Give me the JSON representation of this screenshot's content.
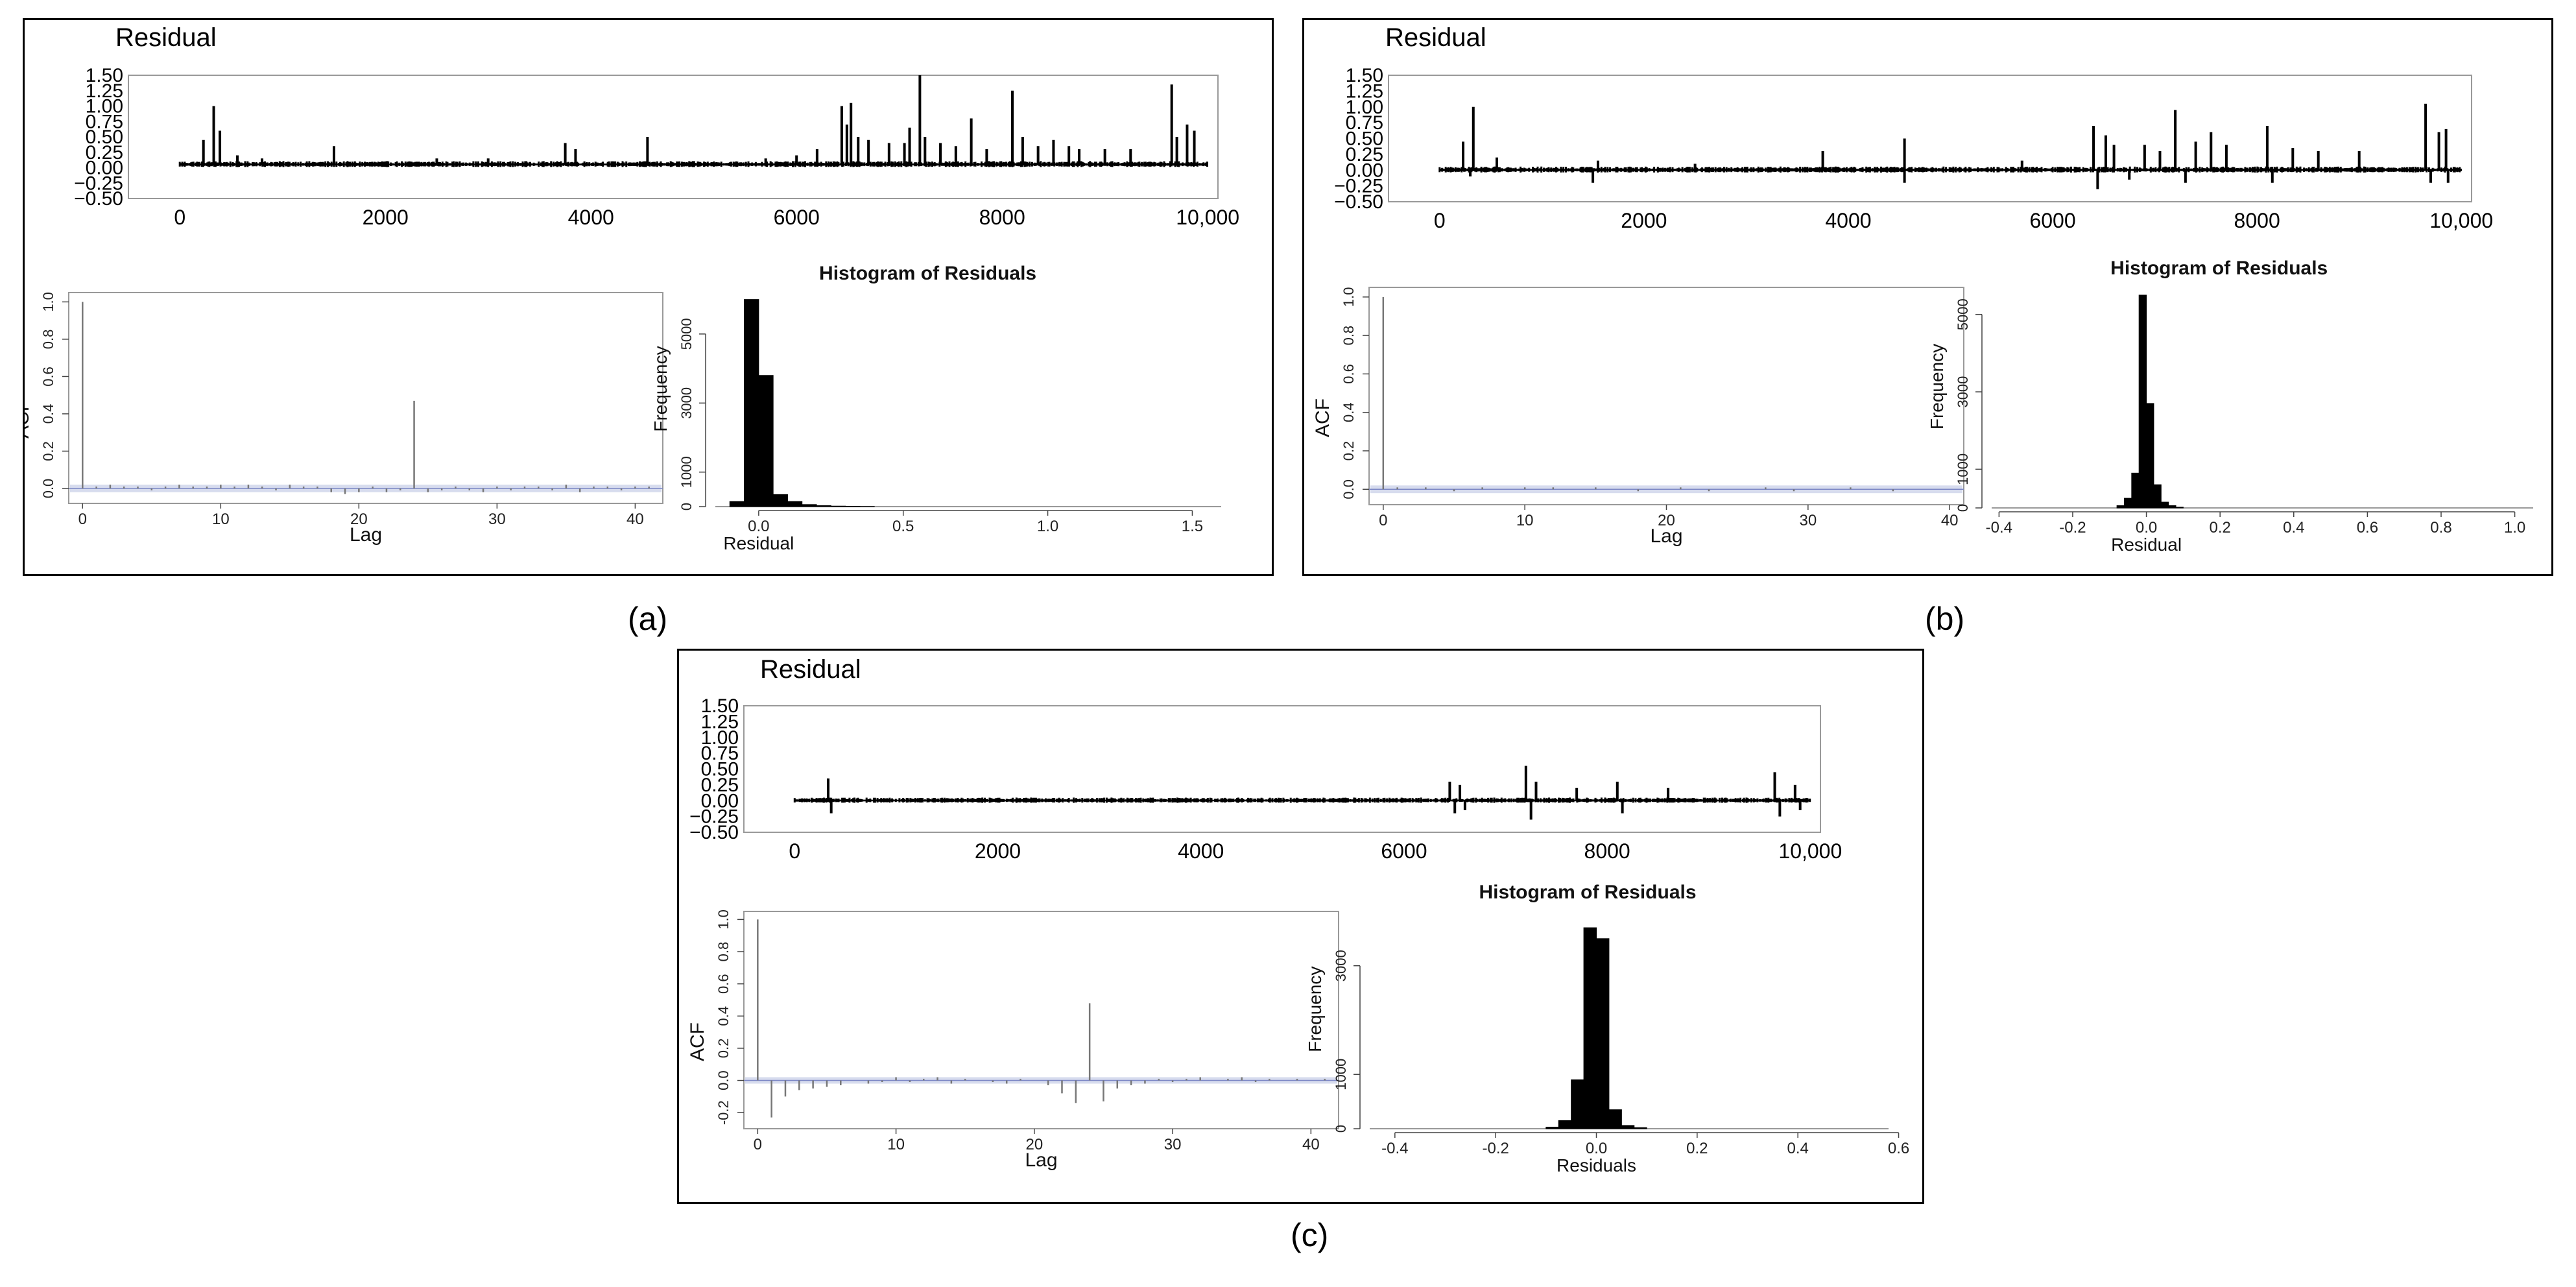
{
  "chart_data": [
    {
      "caption": "(a)",
      "residual": {
        "type": "line",
        "title": "Residual",
        "xlim": [
          -500,
          10100
        ],
        "ylim": [
          -0.5,
          1.5
        ],
        "xticks": [
          0,
          2000,
          4000,
          6000,
          8000,
          10000
        ],
        "xtick_labels": [
          "0",
          "2000",
          "4000",
          "6000",
          "8000",
          "10,000"
        ],
        "yticks": [
          -0.5,
          -0.25,
          0.0,
          0.25,
          0.5,
          0.75,
          1.0,
          1.25,
          1.5
        ],
        "ytick_labels": [
          "−0.50",
          "−0.25",
          "0.00",
          "0.25",
          "0.50",
          "0.75",
          "1.00",
          "1.25",
          "1.50"
        ],
        "series_length": 10000,
        "baseline": 0.05,
        "noise": 0.04,
        "spikes": [
          [
            230,
            0.45
          ],
          [
            330,
            1.0
          ],
          [
            390,
            0.6
          ],
          [
            560,
            0.2
          ],
          [
            800,
            0.15
          ],
          [
            1500,
            0.35
          ],
          [
            2500,
            0.15
          ],
          [
            3000,
            0.15
          ],
          [
            3750,
            0.4
          ],
          [
            3850,
            0.3
          ],
          [
            4550,
            0.5
          ],
          [
            5700,
            0.15
          ],
          [
            6000,
            0.2
          ],
          [
            6200,
            0.3
          ],
          [
            6440,
            1.0
          ],
          [
            6490,
            0.7
          ],
          [
            6530,
            1.05
          ],
          [
            6600,
            0.5
          ],
          [
            6700,
            0.45
          ],
          [
            6900,
            0.4
          ],
          [
            7050,
            0.4
          ],
          [
            7100,
            0.65
          ],
          [
            7200,
            1.5
          ],
          [
            7250,
            0.5
          ],
          [
            7400,
            0.4
          ],
          [
            7550,
            0.35
          ],
          [
            7700,
            0.8
          ],
          [
            7850,
            0.3
          ],
          [
            8100,
            1.25
          ],
          [
            8200,
            0.5
          ],
          [
            8350,
            0.35
          ],
          [
            8500,
            0.45
          ],
          [
            8650,
            0.35
          ],
          [
            8750,
            0.3
          ],
          [
            9000,
            0.3
          ],
          [
            9250,
            0.3
          ],
          [
            9650,
            1.35
          ],
          [
            9700,
            0.5
          ],
          [
            9800,
            0.7
          ],
          [
            9870,
            0.6
          ]
        ]
      },
      "acf": {
        "type": "bar",
        "xlabel": "Lag",
        "ylabel": "ACF",
        "xlim": [
          -1,
          42
        ],
        "ylim": [
          -0.08,
          1.05
        ],
        "xticks": [
          0,
          10,
          20,
          30,
          40
        ],
        "yticks": [
          0.0,
          0.2,
          0.4,
          0.6,
          0.8,
          1.0
        ],
        "ytick_labels": [
          "0.0",
          "0.2",
          "0.4",
          "0.6",
          "0.8",
          "1.0"
        ],
        "conf_band": 0.02,
        "values": [
          1.0,
          0.01,
          0.02,
          0.01,
          0.01,
          -0.01,
          0.01,
          0.02,
          0.01,
          0.01,
          0.02,
          0.01,
          0.02,
          0.01,
          -0.01,
          0.02,
          0.01,
          0.01,
          -0.02,
          -0.03,
          -0.02,
          0.01,
          -0.02,
          -0.01,
          0.47,
          -0.02,
          -0.01,
          0.01,
          -0.01,
          -0.02,
          0.01,
          -0.01,
          0.01,
          0.01,
          -0.01,
          0.02,
          -0.02,
          0.01,
          0.01,
          -0.01,
          0.01,
          0.01
        ]
      },
      "histogram": {
        "type": "bar",
        "title": "Histogram of Residuals",
        "xlabel": "Residual",
        "ylabel": "Frequency",
        "xlim": [
          -0.15,
          1.6
        ],
        "ylim": [
          0,
          6200
        ],
        "xticks": [
          0.0,
          0.5,
          1.0,
          1.5
        ],
        "xtick_labels": [
          "0.0",
          "0.5",
          "1.0",
          "1.5"
        ],
        "yticks": [
          0,
          1000,
          3000,
          5000
        ],
        "ytick_labels": [
          "0",
          "1000",
          "3000",
          "5000"
        ],
        "bins": [
          -0.1,
          -0.05,
          0.0,
          0.05,
          0.1,
          0.15,
          0.2,
          0.25,
          0.3,
          0.35,
          0.4
        ],
        "counts": [
          150,
          6000,
          3800,
          350,
          150,
          60,
          30,
          15,
          10,
          5
        ]
      }
    },
    {
      "caption": "(b)",
      "residual": {
        "type": "line",
        "title": "Residual",
        "xlim": [
          -500,
          10100
        ],
        "ylim": [
          -0.5,
          1.5
        ],
        "xticks": [
          0,
          2000,
          4000,
          6000,
          8000,
          10000
        ],
        "xtick_labels": [
          "0",
          "2000",
          "4000",
          "6000",
          "8000",
          "10,000"
        ],
        "yticks": [
          -0.5,
          -0.25,
          0.0,
          0.25,
          0.5,
          0.75,
          1.0,
          1.25,
          1.5
        ],
        "ytick_labels": [
          "−0.50",
          "−0.25",
          "0.00",
          "0.25",
          "0.50",
          "0.75",
          "1.00",
          "1.25",
          "1.50"
        ],
        "series_length": 10000,
        "baseline": 0.0,
        "noise": 0.04,
        "spikes": [
          [
            230,
            0.45
          ],
          [
            330,
            1.0
          ],
          [
            300,
            -0.1
          ],
          [
            560,
            0.2
          ],
          [
            1500,
            -0.2
          ],
          [
            1550,
            0.15
          ],
          [
            2500,
            0.1
          ],
          [
            3750,
            0.3
          ],
          [
            4550,
            0.5
          ],
          [
            4550,
            -0.2
          ],
          [
            5700,
            0.15
          ],
          [
            6400,
            0.7
          ],
          [
            6440,
            -0.3
          ],
          [
            6520,
            0.55
          ],
          [
            6600,
            0.4
          ],
          [
            6750,
            -0.15
          ],
          [
            6900,
            0.4
          ],
          [
            7050,
            0.3
          ],
          [
            7200,
            0.95
          ],
          [
            7300,
            -0.2
          ],
          [
            7400,
            0.45
          ],
          [
            7550,
            0.6
          ],
          [
            7700,
            0.4
          ],
          [
            8100,
            0.7
          ],
          [
            8150,
            -0.2
          ],
          [
            8350,
            0.35
          ],
          [
            8600,
            0.3
          ],
          [
            9000,
            0.3
          ],
          [
            9650,
            1.05
          ],
          [
            9700,
            -0.2
          ],
          [
            9780,
            0.6
          ],
          [
            9850,
            0.65
          ],
          [
            9870,
            -0.2
          ]
        ]
      },
      "acf": {
        "type": "bar",
        "xlabel": "Lag",
        "ylabel": "ACF",
        "xlim": [
          -1,
          41
        ],
        "ylim": [
          -0.08,
          1.05
        ],
        "xticks": [
          0,
          10,
          20,
          30,
          40
        ],
        "yticks": [
          0.0,
          0.2,
          0.4,
          0.6,
          0.8,
          1.0
        ],
        "ytick_labels": [
          "0.0",
          "0.2",
          "0.4",
          "0.6",
          "0.8",
          "1.0"
        ],
        "conf_band": 0.02,
        "values": [
          1.0,
          0.01,
          0.0,
          0.01,
          0.0,
          -0.01,
          0.0,
          0.01,
          0.0,
          0.0,
          0.01,
          0.0,
          0.01,
          0.0,
          0.0,
          0.01,
          0.0,
          0.0,
          -0.01,
          0.0,
          0.0,
          0.01,
          0.0,
          -0.01,
          0.0,
          0.0,
          0.0,
          0.01,
          0.0,
          -0.01,
          0.0,
          0.0,
          0.0,
          0.01,
          0.0,
          0.0,
          -0.01,
          0.0,
          0.0,
          0.0,
          0.0
        ]
      },
      "histogram": {
        "type": "bar",
        "title": "Histogram of Residuals",
        "xlabel": "Residual",
        "ylabel": "Frequency",
        "xlim": [
          -0.42,
          1.05
        ],
        "ylim": [
          0,
          5700
        ],
        "xticks": [
          -0.4,
          -0.2,
          0.0,
          0.2,
          0.4,
          0.6,
          0.8,
          1.0
        ],
        "xtick_labels": [
          "-0.4",
          "-0.2",
          "0.0",
          "0.2",
          "0.4",
          "0.6",
          "0.8",
          "1.0"
        ],
        "yticks": [
          0,
          1000,
          3000,
          5000
        ],
        "ytick_labels": [
          "0",
          "1000",
          "3000",
          "5000"
        ],
        "bins": [
          -0.08,
          -0.06,
          -0.04,
          -0.02,
          0.0,
          0.02,
          0.04,
          0.06,
          0.08,
          0.1
        ],
        "counts": [
          60,
          250,
          900,
          5500,
          2700,
          600,
          150,
          60,
          20
        ]
      }
    },
    {
      "caption": "(c)",
      "residual": {
        "type": "line",
        "title": "Residual",
        "xlim": [
          -500,
          10100
        ],
        "ylim": [
          -0.5,
          1.5
        ],
        "xticks": [
          0,
          2000,
          4000,
          6000,
          8000,
          10000
        ],
        "xtick_labels": [
          "0",
          "2000",
          "4000",
          "6000",
          "8000",
          "10,000"
        ],
        "yticks": [
          -0.5,
          -0.25,
          0.0,
          0.25,
          0.5,
          0.75,
          1.0,
          1.25,
          1.5
        ],
        "ytick_labels": [
          "−0.50",
          "−0.25",
          "0.00",
          "0.25",
          "0.50",
          "0.75",
          "1.00",
          "1.25",
          "1.50"
        ],
        "series_length": 10000,
        "baseline": 0.0,
        "noise": 0.035,
        "spikes": [
          [
            330,
            0.35
          ],
          [
            360,
            -0.2
          ],
          [
            6450,
            0.3
          ],
          [
            6500,
            -0.2
          ],
          [
            6550,
            0.25
          ],
          [
            6600,
            -0.15
          ],
          [
            7200,
            0.55
          ],
          [
            7250,
            -0.3
          ],
          [
            7300,
            0.3
          ],
          [
            7700,
            0.2
          ],
          [
            8100,
            0.3
          ],
          [
            8150,
            -0.2
          ],
          [
            8600,
            0.2
          ],
          [
            9650,
            0.45
          ],
          [
            9700,
            -0.25
          ],
          [
            9850,
            0.25
          ],
          [
            9900,
            -0.15
          ]
        ]
      },
      "acf": {
        "type": "bar",
        "xlabel": "Lag",
        "ylabel": "ACF",
        "xlim": [
          -1,
          42
        ],
        "ylim": [
          -0.3,
          1.05
        ],
        "xticks": [
          0,
          10,
          20,
          30,
          40
        ],
        "yticks": [
          -0.2,
          0.0,
          0.2,
          0.4,
          0.6,
          0.8,
          1.0
        ],
        "ytick_labels": [
          "-0.2",
          "0.0",
          "0.2",
          "0.4",
          "0.6",
          "0.8",
          "1.0"
        ],
        "conf_band": 0.02,
        "values": [
          1.0,
          -0.23,
          -0.1,
          -0.06,
          -0.05,
          -0.04,
          -0.03,
          0.0,
          -0.02,
          -0.01,
          0.02,
          -0.01,
          0.01,
          0.02,
          -0.02,
          0.01,
          0.0,
          -0.01,
          -0.02,
          0.01,
          0.0,
          -0.03,
          -0.08,
          -0.14,
          0.48,
          -0.13,
          -0.05,
          -0.03,
          -0.02,
          0.01,
          -0.01,
          0.01,
          0.02,
          0.0,
          0.01,
          0.02,
          -0.01,
          0.01,
          0.0,
          0.01,
          0.0,
          0.01
        ]
      },
      "histogram": {
        "type": "bar",
        "title": "Histogram of Residuals",
        "xlabel": "Residuals",
        "ylabel": "Frequency",
        "xlim": [
          -0.45,
          0.58
        ],
        "ylim": [
          0,
          4000
        ],
        "xticks": [
          -0.4,
          -0.2,
          0.0,
          0.2,
          0.4,
          0.6
        ],
        "xtick_labels": [
          "-0.4",
          "-0.2",
          "0.0",
          "0.2",
          "0.4",
          "0.6"
        ],
        "yticks": [
          0,
          1000,
          3000
        ],
        "ytick_labels": [
          "0",
          "1000",
          "3000"
        ],
        "bins": [
          -0.1,
          -0.075,
          -0.05,
          -0.025,
          0.0,
          0.025,
          0.05,
          0.075,
          0.1
        ],
        "counts": [
          30,
          150,
          900,
          3700,
          3500,
          350,
          60,
          20
        ]
      }
    }
  ]
}
